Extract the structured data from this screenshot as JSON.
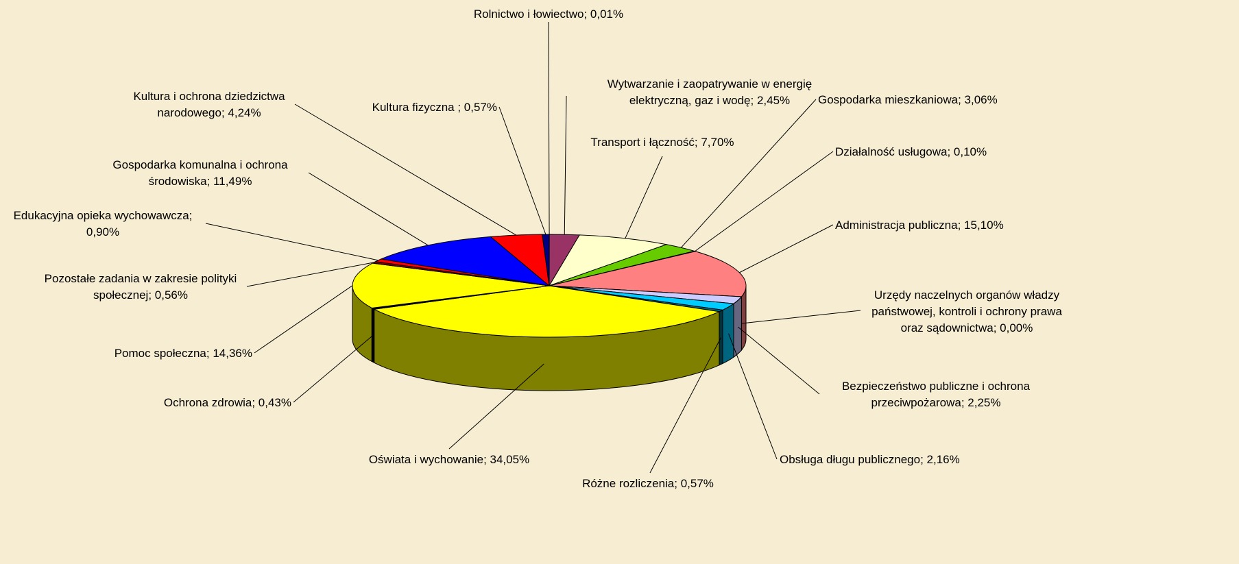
{
  "chart_data": {
    "type": "pie",
    "values": [
      0.01,
      2.45,
      7.7,
      3.06,
      0.1,
      15.1,
      0.0,
      2.25,
      2.16,
      0.57,
      34.05,
      0.43,
      14.36,
      0.56,
      0.9,
      11.49,
      4.24,
      0.57
    ],
    "value_labels": [
      [
        "Rolnictwo i łowiectwo; 0,01%"
      ],
      [
        "Wytwarzanie i zaopatrywanie w energię",
        "elektryczną, gaz i wodę; 2,45%"
      ],
      [
        "Transport i łączność; 7,70%"
      ],
      [
        "Gospodarka mieszkaniowa; 3,06%"
      ],
      [
        "Działalność usługowa; 0,10%"
      ],
      [
        "Administracja publiczna; 15,10%"
      ],
      [
        "Urzędy naczelnych organów władzy",
        "państwowej, kontroli i ochrony prawa",
        "oraz sądownictwa; 0,00%"
      ],
      [
        "Bezpieczeństwo publiczne i ochrona",
        "przeciwpożarowa; 2,25%"
      ],
      [
        "Obsługa długu publicznego; 2,16%"
      ],
      [
        "Różne rozliczenia; 0,57%"
      ],
      [
        "Oświata i wychowanie; 34,05%"
      ],
      [
        "Ochrona zdrowia; 0,43%"
      ],
      [
        "Pomoc społeczna; 14,36%"
      ],
      [
        "Pozostałe zadania w zakresie polityki",
        "społecznej; 0,56%"
      ],
      [
        "Edukacyjna opieka wychowawcza;",
        "0,90%"
      ],
      [
        "Gospodarka komunalna i ochrona",
        "środowiska; 11,49%"
      ],
      [
        "Kultura i ochrona dziedzictwa",
        "narodowego; 4,24%"
      ],
      [
        "Kultura fizyczna ; 0,57%"
      ]
    ],
    "colors": [
      "#ffffff",
      "#993366",
      "#ffffcc",
      "#66cc00",
      "#ffffff",
      "#ff8080",
      "#ccccff",
      "#ccccff",
      "#00ccff",
      "#006680",
      "#ffff00",
      "#000000",
      "#ffff00",
      "#800000",
      "#ff0000",
      "#0000ff",
      "#ff0000",
      "#000080"
    ]
  }
}
